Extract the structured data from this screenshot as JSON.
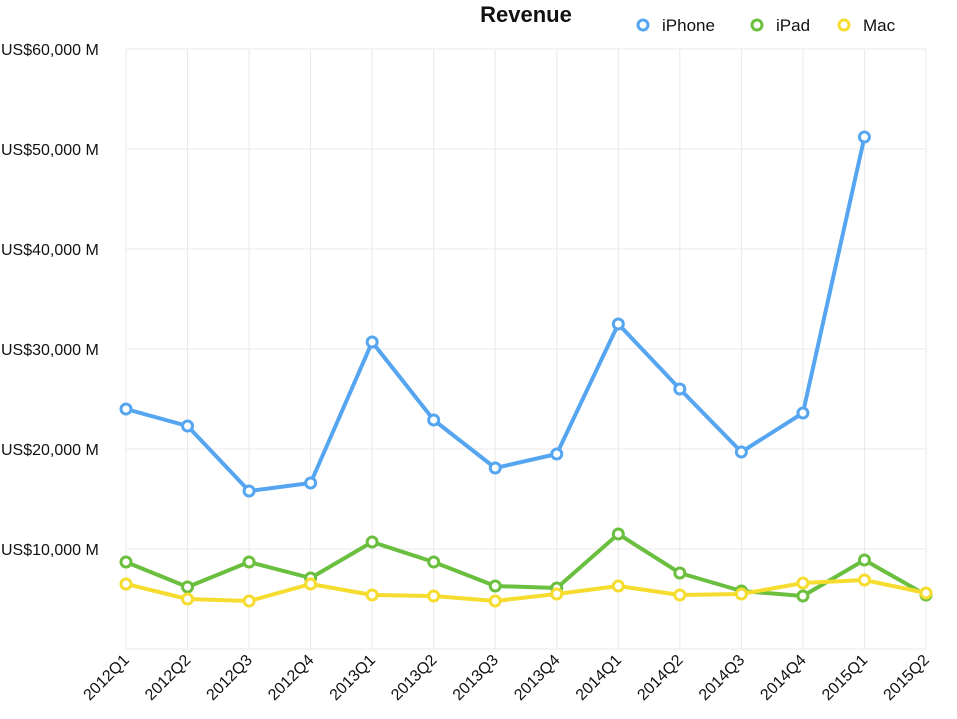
{
  "chart_data": {
    "type": "line",
    "title": "Revenue",
    "xlabel": "",
    "ylabel": "",
    "legend_position": "top-right",
    "grid": true,
    "categories": [
      "2012Q1",
      "2012Q2",
      "2012Q3",
      "2012Q4",
      "2013Q1",
      "2013Q2",
      "2013Q3",
      "2013Q4",
      "2014Q1",
      "2014Q2",
      "2014Q3",
      "2014Q4",
      "2015Q1",
      "2015Q2"
    ],
    "ylim": [
      0,
      60000
    ],
    "yticks": [
      {
        "value": 10000,
        "label": "US$10,000 M"
      },
      {
        "value": 20000,
        "label": "US$20,000 M"
      },
      {
        "value": 30000,
        "label": "US$30,000 M"
      },
      {
        "value": 40000,
        "label": "US$40,000 M"
      },
      {
        "value": 50000,
        "label": "US$50,000 M"
      },
      {
        "value": 60000,
        "label": "US$60,000 M"
      }
    ],
    "series": [
      {
        "name": "iPhone",
        "color": "#55a5f0",
        "values": [
          24000,
          22300,
          15800,
          16600,
          30700,
          22900,
          18100,
          19500,
          32500,
          26000,
          19700,
          23600,
          51200,
          null
        ]
      },
      {
        "name": "iPad",
        "color": "#6bbf3e",
        "values": [
          8700,
          6200,
          8700,
          7100,
          10700,
          8700,
          6300,
          6100,
          11500,
          7600,
          5800,
          5300,
          8900,
          5400
        ]
      },
      {
        "name": "Mac",
        "color": "#f5dc2e",
        "values": [
          6500,
          5000,
          4800,
          6500,
          5400,
          5300,
          4800,
          5500,
          6300,
          5400,
          5500,
          6600,
          6900,
          5600
        ]
      }
    ]
  }
}
